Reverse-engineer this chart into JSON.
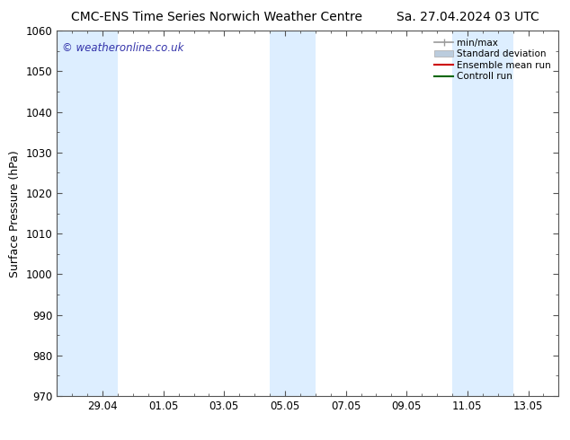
{
  "title_left": "CMC-ENS Time Series Norwich Weather Centre",
  "title_right": "Sa. 27.04.2024 03 UTC",
  "ylabel": "Surface Pressure (hPa)",
  "ylim": [
    970,
    1060
  ],
  "yticks": [
    970,
    980,
    990,
    1000,
    1010,
    1020,
    1030,
    1040,
    1050,
    1060
  ],
  "xlim_start": 0.0,
  "xlim_end": 16.5,
  "xtick_labels": [
    "29.04",
    "01.05",
    "03.05",
    "05.05",
    "07.05",
    "09.05",
    "11.05",
    "13.05"
  ],
  "xtick_positions": [
    1.5,
    3.5,
    5.5,
    7.5,
    9.5,
    11.5,
    13.5,
    15.5
  ],
  "shaded_bands": [
    {
      "x_start": 0.0,
      "x_end": 2.0
    },
    {
      "x_start": 7.0,
      "x_end": 8.5
    },
    {
      "x_start": 13.0,
      "x_end": 15.0
    }
  ],
  "band_color": "#ddeeff",
  "watermark_text": "© weatheronline.co.uk",
  "watermark_color": "#3333aa",
  "legend_labels": [
    "min/max",
    "Standard deviation",
    "Ensemble mean run",
    "Controll run"
  ],
  "legend_colors_line": [
    "#999999",
    "#bbccdd",
    "#cc0000",
    "#006600"
  ],
  "background_color": "#ffffff",
  "plot_bg_color": "#ffffff",
  "spine_color": "#555555",
  "title_fontsize": 10,
  "axis_label_fontsize": 9,
  "tick_fontsize": 8.5,
  "watermark_fontsize": 8.5
}
